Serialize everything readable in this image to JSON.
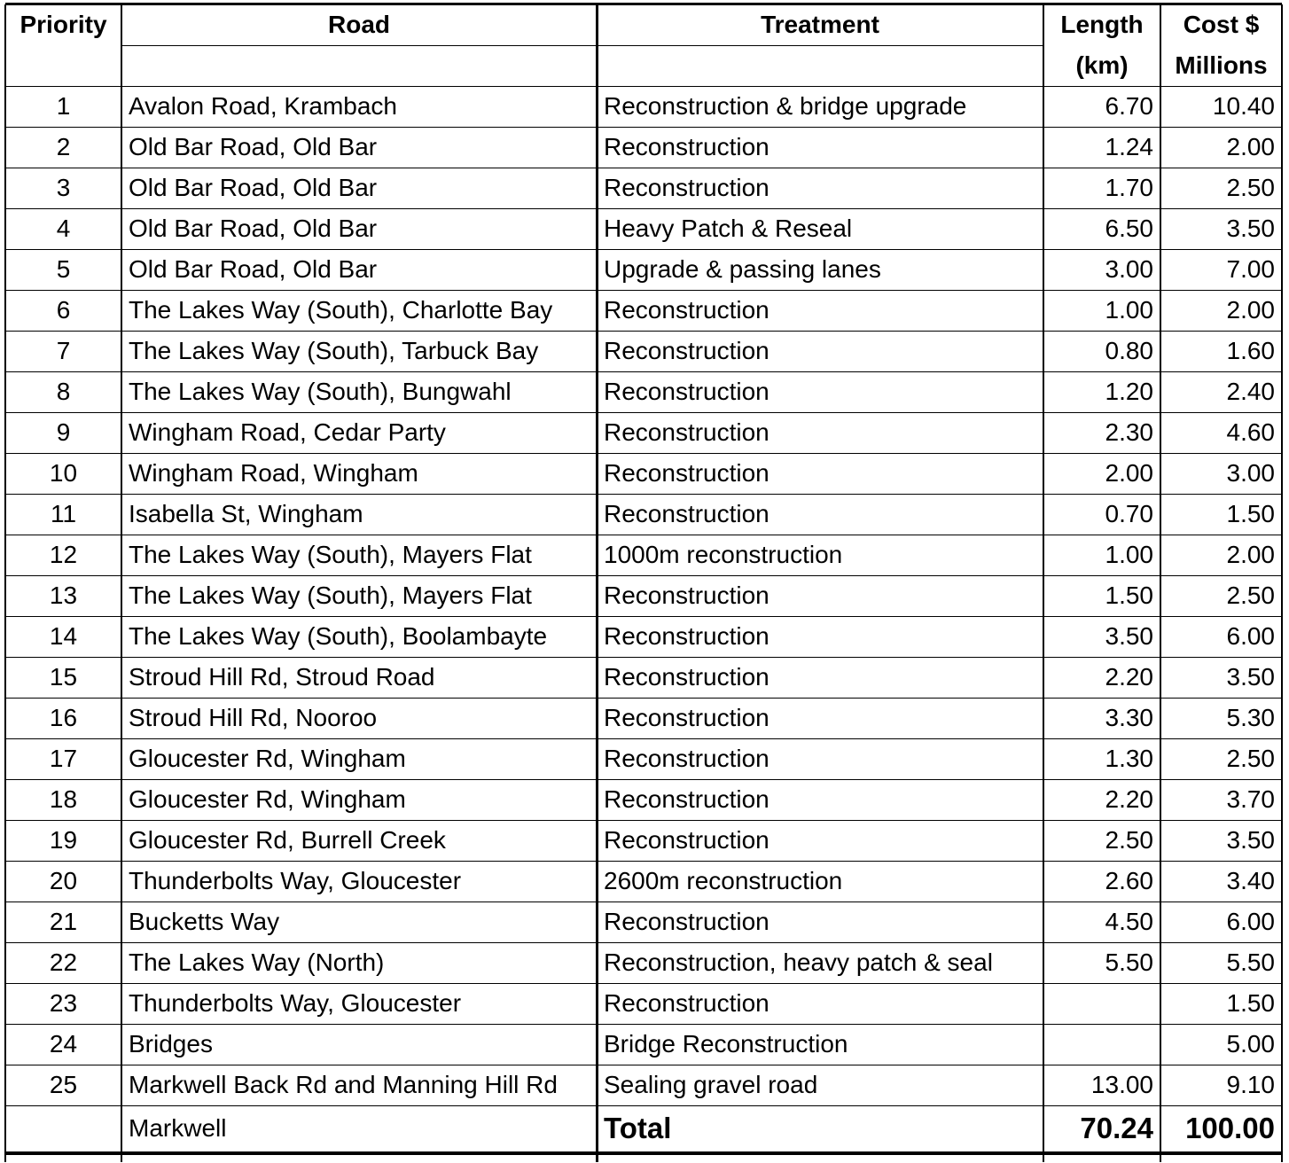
{
  "table": {
    "header": [
      [
        "Priority",
        "Road",
        "Treatment",
        "Length",
        "Cost $"
      ],
      [
        "(km)",
        "Millions"
      ]
    ],
    "rows": [
      {
        "priority": "1",
        "road": "Avalon Road, Krambach",
        "treatment": "Reconstruction & bridge upgrade",
        "length": "6.70",
        "cost": "10.40"
      },
      {
        "priority": "2",
        "road": "Old Bar Road, Old Bar",
        "treatment": "Reconstruction",
        "length": "1.24",
        "cost": "2.00"
      },
      {
        "priority": "3",
        "road": "Old Bar Road, Old Bar",
        "treatment": "Reconstruction",
        "length": "1.70",
        "cost": "2.50"
      },
      {
        "priority": "4",
        "road": "Old Bar Road, Old Bar",
        "treatment": "Heavy Patch & Reseal",
        "length": "6.50",
        "cost": "3.50"
      },
      {
        "priority": "5",
        "road": "Old Bar Road, Old Bar",
        "treatment": "Upgrade & passing lanes",
        "length": "3.00",
        "cost": "7.00"
      },
      {
        "priority": "6",
        "road": "The Lakes Way (South), Charlotte Bay",
        "treatment": "Reconstruction",
        "length": "1.00",
        "cost": "2.00"
      },
      {
        "priority": "7",
        "road": "The Lakes Way (South), Tarbuck Bay",
        "treatment": "Reconstruction",
        "length": "0.80",
        "cost": "1.60"
      },
      {
        "priority": "8",
        "road": "The Lakes Way (South), Bungwahl",
        "treatment": "Reconstruction",
        "length": "1.20",
        "cost": "2.40"
      },
      {
        "priority": "9",
        "road": "Wingham Road, Cedar Party",
        "treatment": "Reconstruction",
        "length": "2.30",
        "cost": "4.60"
      },
      {
        "priority": "10",
        "road": "Wingham Road, Wingham",
        "treatment": "Reconstruction",
        "length": "2.00",
        "cost": "3.00"
      },
      {
        "priority": "11",
        "road": "Isabella St, Wingham",
        "treatment": "Reconstruction",
        "length": "0.70",
        "cost": "1.50"
      },
      {
        "priority": "12",
        "road": "The Lakes Way (South), Mayers Flat",
        "treatment": "1000m reconstruction",
        "length": "1.00",
        "cost": "2.00"
      },
      {
        "priority": "13",
        "road": "The Lakes Way (South), Mayers Flat",
        "treatment": "Reconstruction",
        "length": "1.50",
        "cost": "2.50"
      },
      {
        "priority": "14",
        "road": "The Lakes Way (South), Boolambayte",
        "treatment": "Reconstruction",
        "length": "3.50",
        "cost": "6.00"
      },
      {
        "priority": "15",
        "road": "Stroud Hill Rd, Stroud Road",
        "treatment": "Reconstruction",
        "length": "2.20",
        "cost": "3.50"
      },
      {
        "priority": "16",
        "road": "Stroud Hill Rd, Nooroo",
        "treatment": "Reconstruction",
        "length": "3.30",
        "cost": "5.30"
      },
      {
        "priority": "17",
        "road": "Gloucester Rd, Wingham",
        "treatment": "Reconstruction",
        "length": "1.30",
        "cost": "2.50"
      },
      {
        "priority": "18",
        "road": "Gloucester Rd, Wingham",
        "treatment": "Reconstruction",
        "length": "2.20",
        "cost": "3.70"
      },
      {
        "priority": "19",
        "road": "Gloucester Rd, Burrell Creek",
        "treatment": "Reconstruction",
        "length": "2.50",
        "cost": "3.50"
      },
      {
        "priority": "20",
        "road": "Thunderbolts Way, Gloucester",
        "treatment": "2600m reconstruction",
        "length": "2.60",
        "cost": "3.40"
      },
      {
        "priority": "21",
        "road": "Bucketts Way",
        "treatment": "Reconstruction",
        "length": "4.50",
        "cost": "6.00"
      },
      {
        "priority": "22",
        "road": "The Lakes Way (North)",
        "treatment": "Reconstruction, heavy patch & seal",
        "length": "5.50",
        "cost": "5.50"
      },
      {
        "priority": "23",
        "road": "Thunderbolts Way, Gloucester",
        "treatment": "Reconstruction",
        "cost": "1.50"
      },
      {
        "priority": "24",
        "road": "Bridges",
        "treatment": "Bridge Reconstruction",
        "cost": "5.00"
      },
      {
        "priority": "25",
        "road": "Markwell Back Rd and Manning Hill Rd",
        "treatment": "Sealing gravel road",
        "length": "13.00",
        "cost": "9.10"
      }
    ],
    "footer": {
      "road": "Markwell",
      "label": "Total",
      "length": "70.24",
      "cost": "100.00"
    }
  }
}
